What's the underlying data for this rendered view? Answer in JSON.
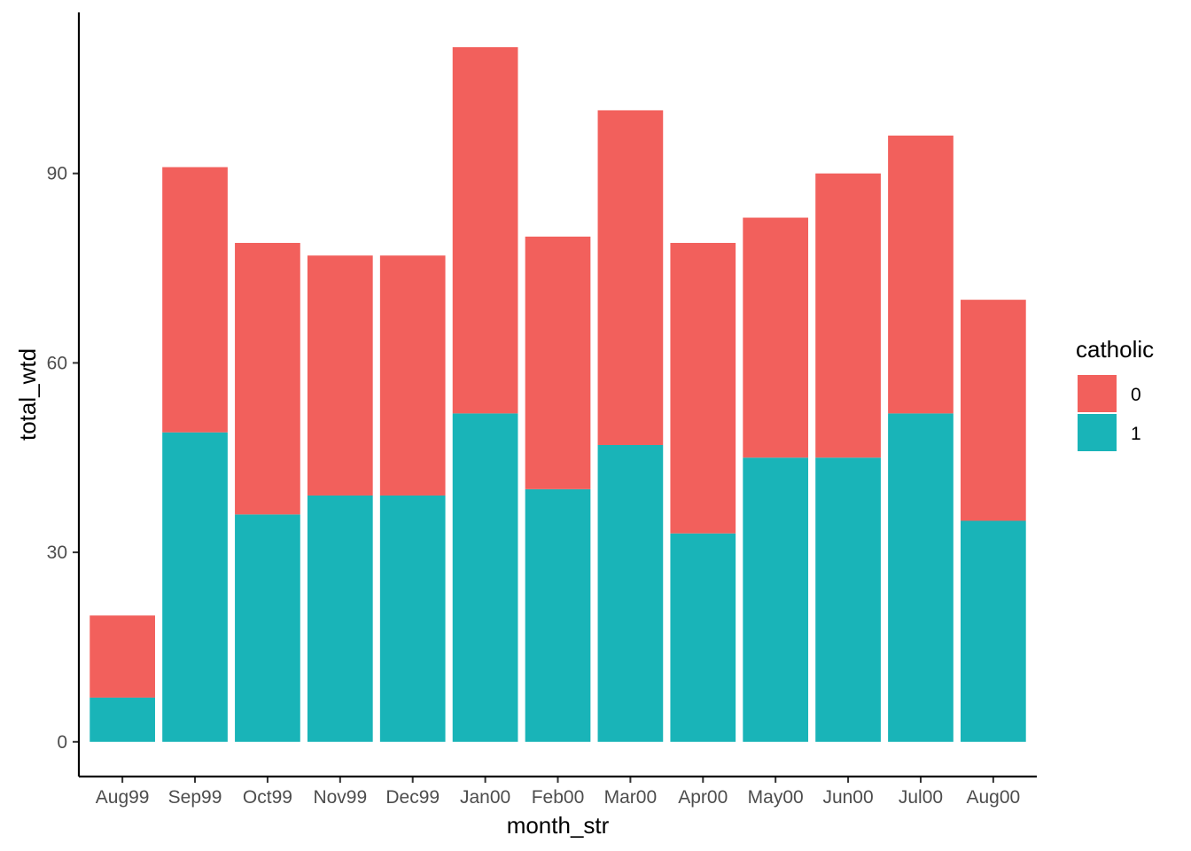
{
  "chart_data": {
    "type": "bar",
    "stacked": true,
    "categories": [
      "Aug99",
      "Sep99",
      "Oct99",
      "Nov99",
      "Dec99",
      "Jan00",
      "Feb00",
      "Mar00",
      "Apr00",
      "May00",
      "Jun00",
      "Jul00",
      "Aug00"
    ],
    "series": [
      {
        "name": "1",
        "color": "#19B4B8",
        "values": [
          7,
          49,
          36,
          39,
          39,
          52,
          40,
          47,
          33,
          45,
          45,
          52,
          35
        ]
      },
      {
        "name": "0",
        "color": "#F2605C",
        "values": [
          13,
          42,
          43,
          38,
          38,
          58,
          40,
          53,
          46,
          38,
          45,
          44,
          35
        ]
      }
    ],
    "title": "",
    "xlabel": "month_str",
    "ylabel": "total_wtd",
    "ylim": [
      -5.5,
      115.5
    ],
    "yticks": [
      0,
      30,
      60,
      90
    ],
    "ytick_labels": [
      "0",
      "30",
      "60",
      "90"
    ],
    "grid": false,
    "legend": {
      "title": "catholic",
      "placement": "right",
      "entries": [
        {
          "label": "0",
          "color": "#F2605C"
        },
        {
          "label": "1",
          "color": "#19B4B8"
        }
      ]
    }
  }
}
